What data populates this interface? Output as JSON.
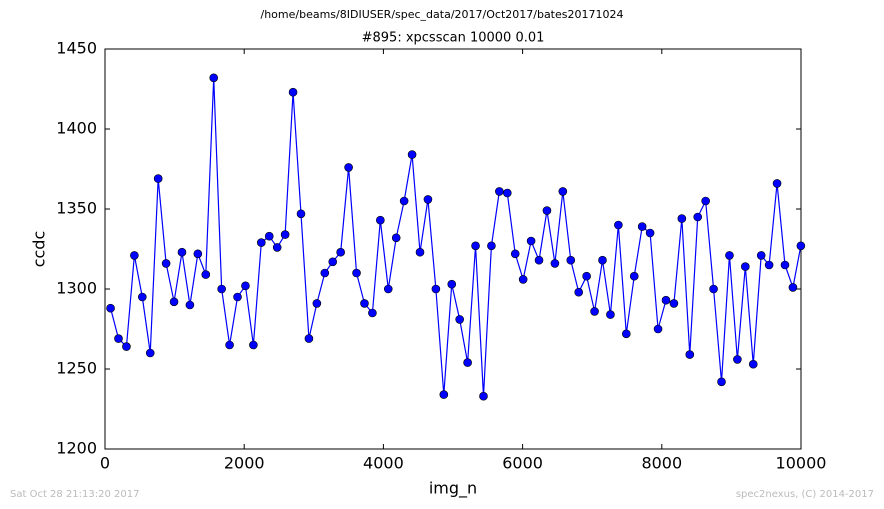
{
  "chart_data": {
    "type": "line",
    "suptitle": "/home/beams/8IDIUSER/spec_data/2017/Oct2017/bates20171024",
    "title": "#895: xpcsscan 10000 0.01",
    "xlabel": "img_n",
    "ylabel": "ccdc",
    "footer_left": "Sat Oct 28 21:13:20 2017",
    "footer_right": "spec2nexus, (C) 2014-2017",
    "x": [
      80,
      194,
      308,
      422,
      536,
      650,
      764,
      878,
      992,
      1106,
      1220,
      1334,
      1448,
      1562,
      1676,
      1790,
      1904,
      2018,
      2132,
      2246,
      2360,
      2474,
      2588,
      2702,
      2816,
      2930,
      3044,
      3158,
      3272,
      3386,
      3500,
      3614,
      3728,
      3842,
      3956,
      4070,
      4184,
      4298,
      4412,
      4526,
      4640,
      4754,
      4868,
      4982,
      5096,
      5210,
      5324,
      5438,
      5552,
      5666,
      5780,
      5894,
      6008,
      6122,
      6236,
      6350,
      6464,
      6578,
      6692,
      6806,
      6920,
      7034,
      7148,
      7262,
      7376,
      7490,
      7604,
      7718,
      7832,
      7946,
      8060,
      8174,
      8288,
      8402,
      8516,
      8630,
      8744,
      8858,
      8972,
      9086,
      9200,
      9314,
      9428,
      9542,
      9656,
      9770,
      9884,
      9998
    ],
    "series": [
      {
        "name": "ccdc",
        "color": "#0000ff",
        "values": [
          1288,
          1269,
          1264,
          1321,
          1295,
          1260,
          1369,
          1316,
          1292,
          1323,
          1290,
          1322,
          1309,
          1432,
          1300,
          1265,
          1295,
          1302,
          1265,
          1329,
          1333,
          1326,
          1334,
          1423,
          1347,
          1269,
          1291,
          1310,
          1317,
          1323,
          1376,
          1310,
          1291,
          1285,
          1343,
          1300,
          1332,
          1355,
          1384,
          1323,
          1356,
          1300,
          1234,
          1303,
          1281,
          1254,
          1327,
          1233,
          1327,
          1361,
          1360,
          1322,
          1306,
          1330,
          1318,
          1349,
          1316,
          1361,
          1318,
          1298,
          1308,
          1286,
          1318,
          1284,
          1340,
          1272,
          1308,
          1339,
          1335,
          1275,
          1293,
          1291,
          1344,
          1259,
          1345,
          1355,
          1300,
          1242,
          1321,
          1256,
          1314,
          1253,
          1321,
          1315,
          1366,
          1315,
          1301,
          1327
        ]
      }
    ],
    "xlim": [
      0,
      10000
    ],
    "xticks": [
      0,
      2000,
      4000,
      6000,
      8000,
      10000
    ],
    "ylim": [
      1200,
      1450
    ],
    "yticks": [
      1200,
      1250,
      1300,
      1350,
      1400,
      1450
    ],
    "grid": false
  }
}
